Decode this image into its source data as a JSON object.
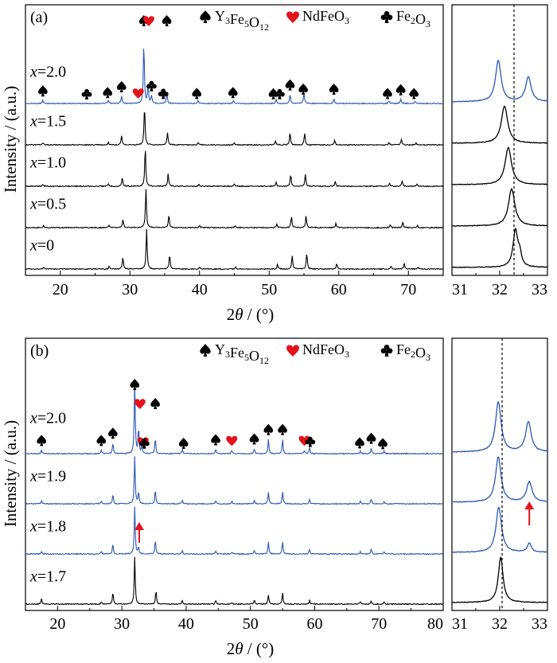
{
  "figure": {
    "legend_items": [
      {
        "sym": "spade",
        "color": "#000000",
        "label": "Y3Fe5O12"
      },
      {
        "sym": "heart",
        "color": "#e3121b",
        "label": "NdFeO3"
      },
      {
        "sym": "club",
        "color": "#000000",
        "label": "Fe2O3"
      }
    ],
    "y_label": "Intensity / (a.u.)",
    "x_label": "2θ / (°)"
  },
  "chart_data": [
    {
      "id": "a",
      "panel_label": "(a)",
      "type": "line",
      "xlim": [
        15,
        75
      ],
      "xticks": [
        20,
        30,
        40,
        50,
        60,
        70
      ],
      "zoom_xlim": [
        31,
        33
      ],
      "zoom_xticks": [
        31,
        32,
        33
      ],
      "reference_line": 32.3,
      "series": [
        {
          "name": "x=2.0",
          "color": "#2a57b5",
          "peaks": [
            [
              17.5,
              0.05
            ],
            [
              26.9,
              0.05
            ],
            [
              28.8,
              0.12
            ],
            [
              32.0,
              1.0
            ],
            [
              32.6,
              0.3
            ],
            [
              33.1,
              0.12
            ],
            [
              35.3,
              0.18
            ],
            [
              39.8,
              0.05
            ],
            [
              44.9,
              0.05
            ],
            [
              51.0,
              0.06
            ],
            [
              53.0,
              0.15
            ],
            [
              55.0,
              0.18
            ],
            [
              59.3,
              0.08
            ],
            [
              67.2,
              0.04
            ],
            [
              68.9,
              0.07
            ],
            [
              71.0,
              0.04
            ]
          ],
          "zoom_peaks": [
            [
              31.97,
              1.0,
              0.07
            ],
            [
              32.6,
              0.6,
              0.07
            ]
          ]
        },
        {
          "name": "x=1.5",
          "color": "#000000",
          "peaks": [
            [
              17.5,
              0.05
            ],
            [
              26.9,
              0.06
            ],
            [
              28.8,
              0.22
            ],
            [
              32.1,
              1.0
            ],
            [
              35.4,
              0.32
            ],
            [
              39.8,
              0.06
            ],
            [
              45.0,
              0.05
            ],
            [
              50.9,
              0.1
            ],
            [
              53.0,
              0.3
            ],
            [
              55.1,
              0.3
            ],
            [
              59.4,
              0.12
            ],
            [
              67.2,
              0.07
            ],
            [
              69.0,
              0.14
            ],
            [
              71.1,
              0.05
            ]
          ],
          "zoom_peaks": [
            [
              32.1,
              1.0,
              0.08
            ]
          ]
        },
        {
          "name": "x=1.0",
          "color": "#000000",
          "peaks": [
            [
              17.5,
              0.05
            ],
            [
              26.9,
              0.06
            ],
            [
              28.9,
              0.22
            ],
            [
              32.2,
              1.0
            ],
            [
              35.5,
              0.32
            ],
            [
              39.9,
              0.06
            ],
            [
              45.0,
              0.05
            ],
            [
              51.0,
              0.1
            ],
            [
              53.1,
              0.3
            ],
            [
              55.2,
              0.3
            ],
            [
              59.5,
              0.12
            ],
            [
              67.3,
              0.07
            ],
            [
              69.1,
              0.14
            ],
            [
              71.2,
              0.05
            ]
          ],
          "zoom_peaks": [
            [
              32.18,
              1.0,
              0.08
            ]
          ]
        },
        {
          "name": "x=0.5",
          "color": "#000000",
          "peaks": [
            [
              17.6,
              0.05
            ],
            [
              27.0,
              0.06
            ],
            [
              29.0,
              0.22
            ],
            [
              32.3,
              1.0
            ],
            [
              35.6,
              0.32
            ],
            [
              40.0,
              0.06
            ],
            [
              45.1,
              0.05
            ],
            [
              51.1,
              0.1
            ],
            [
              53.2,
              0.3
            ],
            [
              55.3,
              0.3
            ],
            [
              59.6,
              0.12
            ],
            [
              67.4,
              0.07
            ],
            [
              69.2,
              0.14
            ],
            [
              71.3,
              0.05
            ]
          ],
          "zoom_peaks": [
            [
              32.25,
              1.0,
              0.08
            ]
          ]
        },
        {
          "name": "x=0",
          "color": "#000000",
          "peaks": [
            [
              17.6,
              0.05
            ],
            [
              27.0,
              0.06
            ],
            [
              29.0,
              0.3
            ],
            [
              32.4,
              1.0
            ],
            [
              35.7,
              0.37
            ],
            [
              40.0,
              0.06
            ],
            [
              45.2,
              0.05
            ],
            [
              51.2,
              0.12
            ],
            [
              53.3,
              0.34
            ],
            [
              55.4,
              0.4
            ],
            [
              59.7,
              0.14
            ],
            [
              67.5,
              0.07
            ],
            [
              69.4,
              0.16
            ],
            [
              71.4,
              0.05
            ]
          ],
          "zoom_peaks": [
            [
              32.33,
              1.0,
              0.06
            ],
            [
              32.42,
              0.3,
              0.04
            ]
          ]
        }
      ],
      "markers": [
        {
          "sym": "spade",
          "x": 17.5,
          "color": "#000000"
        },
        {
          "sym": "club",
          "x": 23.8,
          "color": "#000000"
        },
        {
          "sym": "spade",
          "x": 26.8,
          "color": "#000000"
        },
        {
          "sym": "spade",
          "x": 28.8,
          "color": "#000000"
        },
        {
          "sym": "heart",
          "x": 31.2,
          "color": "#e3121b"
        },
        {
          "sym": "spade",
          "x": 32.0,
          "color": "#000000",
          "high": true
        },
        {
          "sym": "heart",
          "x": 32.7,
          "color": "#e3121b",
          "high": true
        },
        {
          "sym": "club",
          "x": 33.1,
          "color": "#000000"
        },
        {
          "sym": "club",
          "x": 34.8,
          "color": "#000000"
        },
        {
          "sym": "spade",
          "x": 35.3,
          "color": "#000000",
          "high": true
        },
        {
          "sym": "spade",
          "x": 39.6,
          "color": "#000000"
        },
        {
          "sym": "spade",
          "x": 44.8,
          "color": "#000000"
        },
        {
          "sym": "spade",
          "x": 50.6,
          "color": "#000000"
        },
        {
          "sym": "club",
          "x": 51.5,
          "color": "#000000"
        },
        {
          "sym": "spade",
          "x": 53.0,
          "color": "#000000"
        },
        {
          "sym": "spade",
          "x": 54.9,
          "color": "#000000"
        },
        {
          "sym": "spade",
          "x": 59.3,
          "color": "#000000"
        },
        {
          "sym": "spade",
          "x": 67.0,
          "color": "#000000"
        },
        {
          "sym": "spade",
          "x": 68.9,
          "color": "#000000"
        },
        {
          "sym": "spade",
          "x": 70.8,
          "color": "#000000"
        }
      ]
    },
    {
      "id": "b",
      "panel_label": "(b)",
      "type": "line",
      "xlim": [
        15,
        80
      ],
      "xticks": [
        20,
        30,
        40,
        50,
        60,
        70,
        80
      ],
      "zoom_xlim": [
        31,
        33
      ],
      "zoom_xticks": [
        31,
        32,
        33
      ],
      "reference_line": 32.05,
      "series": [
        {
          "name": "x=2.0",
          "color": "#2a57b5",
          "peaks": [
            [
              17.5,
              0.05
            ],
            [
              26.8,
              0.05
            ],
            [
              28.6,
              0.15
            ],
            [
              32.0,
              1.0
            ],
            [
              32.6,
              0.35
            ],
            [
              33.1,
              0.12
            ],
            [
              35.2,
              0.22
            ],
            [
              39.4,
              0.06
            ],
            [
              44.6,
              0.06
            ],
            [
              47.1,
              0.05
            ],
            [
              50.6,
              0.07
            ],
            [
              52.8,
              0.2
            ],
            [
              55.0,
              0.2
            ],
            [
              58.4,
              0.05
            ],
            [
              59.2,
              0.08
            ],
            [
              67.1,
              0.04
            ],
            [
              68.8,
              0.08
            ],
            [
              70.8,
              0.04
            ]
          ],
          "zoom_peaks": [
            [
              31.97,
              1.0,
              0.07
            ],
            [
              32.6,
              0.6,
              0.07
            ]
          ]
        },
        {
          "name": "x=1.9",
          "color": "#2a57b5",
          "peaks": [
            [
              17.5,
              0.06
            ],
            [
              26.8,
              0.06
            ],
            [
              28.6,
              0.2
            ],
            [
              32.0,
              1.0
            ],
            [
              32.6,
              0.25
            ],
            [
              35.2,
              0.3
            ],
            [
              39.4,
              0.07
            ],
            [
              44.6,
              0.07
            ],
            [
              47.1,
              0.05
            ],
            [
              50.6,
              0.08
            ],
            [
              52.8,
              0.25
            ],
            [
              55.0,
              0.27
            ],
            [
              59.2,
              0.1
            ],
            [
              67.1,
              0.05
            ],
            [
              68.8,
              0.1
            ],
            [
              70.8,
              0.05
            ]
          ],
          "zoom_peaks": [
            [
              31.97,
              1.0,
              0.07
            ],
            [
              32.62,
              0.45,
              0.07
            ]
          ]
        },
        {
          "name": "x=1.8",
          "color": "#2a57b5",
          "peaks": [
            [
              17.5,
              0.05
            ],
            [
              26.8,
              0.05
            ],
            [
              28.6,
              0.22
            ],
            [
              32.0,
              1.0
            ],
            [
              32.6,
              0.15
            ],
            [
              35.2,
              0.3
            ],
            [
              39.4,
              0.07
            ],
            [
              44.6,
              0.06
            ],
            [
              47.1,
              0.04
            ],
            [
              50.6,
              0.08
            ],
            [
              52.8,
              0.25
            ],
            [
              55.0,
              0.27
            ],
            [
              59.2,
              0.1
            ],
            [
              67.1,
              0.05
            ],
            [
              68.8,
              0.1
            ],
            [
              70.8,
              0.05
            ]
          ],
          "zoom_peaks": [
            [
              31.98,
              1.0,
              0.07
            ],
            [
              32.62,
              0.2,
              0.05
            ]
          ]
        },
        {
          "name": "x=1.7",
          "color": "#000000",
          "peaks": [
            [
              17.5,
              0.12
            ],
            [
              26.8,
              0.05
            ],
            [
              28.6,
              0.25
            ],
            [
              32.0,
              1.0
            ],
            [
              35.3,
              0.28
            ],
            [
              39.4,
              0.08
            ],
            [
              44.6,
              0.08
            ],
            [
              47.1,
              0.03
            ],
            [
              50.6,
              0.09
            ],
            [
              52.8,
              0.2
            ],
            [
              55.0,
              0.24
            ],
            [
              59.2,
              0.08
            ],
            [
              67.1,
              0.05
            ],
            [
              68.8,
              0.08
            ],
            [
              70.8,
              0.05
            ]
          ],
          "zoom_peaks": [
            [
              32.02,
              1.0,
              0.06
            ]
          ]
        }
      ],
      "markers": [
        {
          "sym": "spade",
          "x": 17.5,
          "color": "#000000"
        },
        {
          "sym": "spade",
          "x": 26.8,
          "color": "#000000"
        },
        {
          "sym": "spade",
          "x": 28.6,
          "color": "#000000"
        },
        {
          "sym": "spade",
          "x": 32.0,
          "color": "#000000",
          "high": true
        },
        {
          "sym": "heart",
          "x": 32.8,
          "color": "#e3121b",
          "mid": true
        },
        {
          "sym": "heart",
          "x": 33.3,
          "color": "#e3121b"
        },
        {
          "sym": "club",
          "x": 33.5,
          "color": "#000000"
        },
        {
          "sym": "spade",
          "x": 35.2,
          "color": "#000000",
          "mid": true
        },
        {
          "sym": "spade",
          "x": 39.6,
          "color": "#000000"
        },
        {
          "sym": "spade",
          "x": 44.6,
          "color": "#000000"
        },
        {
          "sym": "heart",
          "x": 47.1,
          "color": "#e3121b"
        },
        {
          "sym": "spade",
          "x": 50.6,
          "color": "#000000"
        },
        {
          "sym": "spade",
          "x": 52.8,
          "color": "#000000"
        },
        {
          "sym": "spade",
          "x": 55.0,
          "color": "#000000"
        },
        {
          "sym": "heart",
          "x": 58.4,
          "color": "#e3121b"
        },
        {
          "sym": "club",
          "x": 59.3,
          "color": "#000000"
        },
        {
          "sym": "spade",
          "x": 67.0,
          "color": "#000000"
        },
        {
          "sym": "spade",
          "x": 68.8,
          "color": "#000000"
        },
        {
          "sym": "spade",
          "x": 70.6,
          "color": "#000000"
        }
      ],
      "arrows": [
        {
          "where": "main",
          "series": "x=1.8",
          "x": 32.7,
          "color": "#e3121b"
        },
        {
          "where": "zoom",
          "series": "x=1.8",
          "x": 32.62,
          "color": "#e3121b"
        }
      ]
    }
  ]
}
